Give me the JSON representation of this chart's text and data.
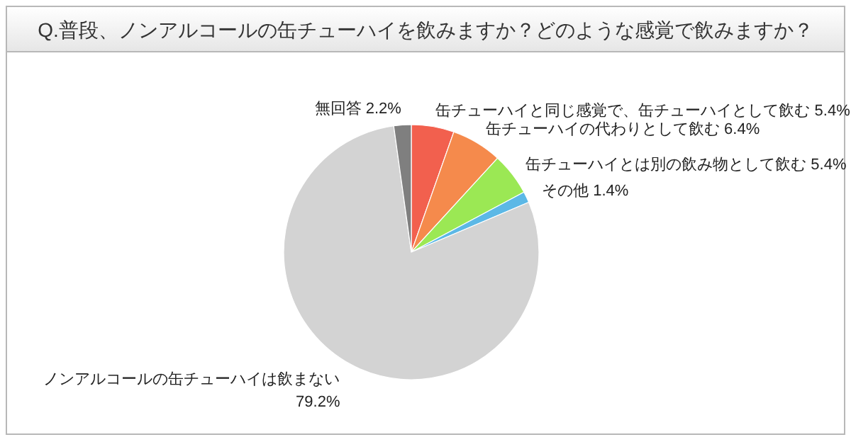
{
  "chart_data": {
    "type": "pie",
    "title": "Q.普段、ノンアルコールの缶チューハイを飲みますか？どのような感覚で飲みますか？",
    "categories": [
      "缶チューハイと同じ感覚で、缶チューハイとして飲む",
      "缶チューハイの代わりとして飲む",
      "缶チューハイとは別の飲み物として飲む",
      "その他",
      "ノンアルコールの缶チューハイは飲まない",
      "無回答"
    ],
    "values": [
      5.4,
      6.4,
      5.4,
      1.4,
      79.2,
      2.2
    ],
    "colors": [
      "#f2604e",
      "#f58a4c",
      "#9be854",
      "#5cb8e6",
      "#d3d3d3",
      "#7f7f7f"
    ],
    "value_labels": [
      "5.4%",
      "6.4%",
      "5.4%",
      "1.4%",
      "79.2%",
      "2.2%"
    ]
  }
}
